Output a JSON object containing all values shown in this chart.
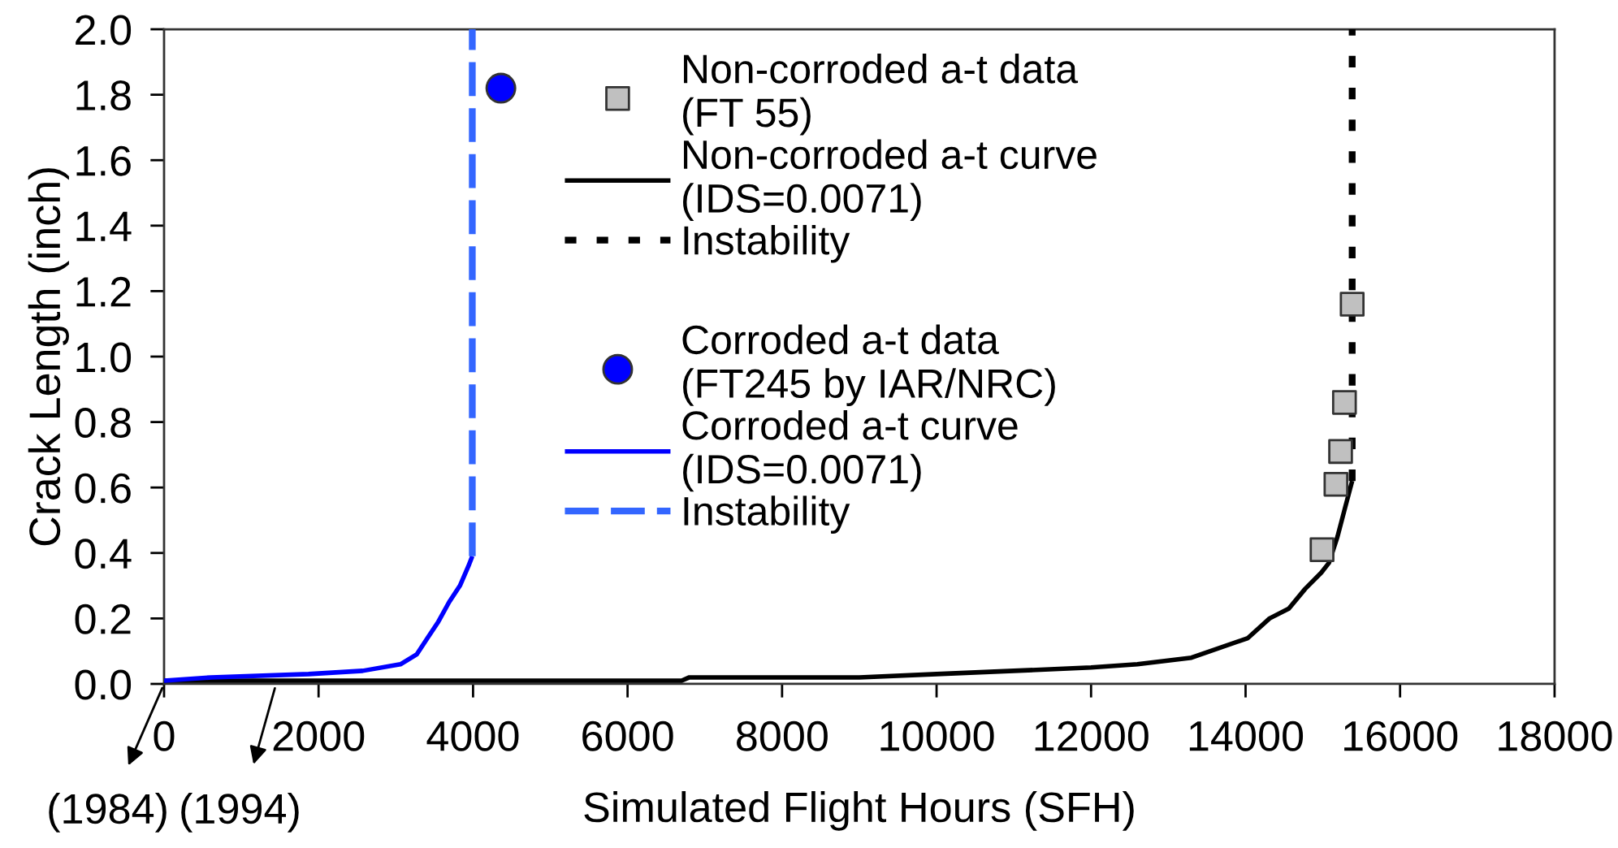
{
  "chart_data": {
    "type": "line",
    "xlabel": "Simulated Flight Hours (SFH)",
    "ylabel": "Crack Length (inch)",
    "xlim": [
      0,
      18000
    ],
    "xticks": [
      0,
      2000,
      4000,
      6000,
      8000,
      10000,
      12000,
      14000,
      16000,
      18000
    ],
    "ylim": [
      0,
      2
    ],
    "yticks": [
      {
        "value": 0,
        "label": "0.0"
      },
      0.2,
      0.4,
      0.6,
      0.8,
      {
        "value": 1,
        "label": "1.0"
      },
      1.2,
      1.4,
      1.6,
      1.8,
      {
        "value": 2,
        "label": "2.0"
      }
    ],
    "grid": false,
    "legend": "top",
    "annotations": [
      {
        "text": "(1984)",
        "x": 0,
        "y": 0
      },
      {
        "text": "(1994)",
        "x": 1450,
        "y": 0
      }
    ],
    "series": [
      {
        "name": "Non-corroded a-t data\n(FT 55)",
        "type": "scatter",
        "marker": "square",
        "color": "#c0c0c0",
        "x": [
          14990,
          15170,
          15230,
          15280,
          15380
        ],
        "values": [
          0.41,
          0.61,
          0.71,
          0.86,
          1.16
        ]
      },
      {
        "name": "Non-corroded a-t curve\n(IDS=0.0071)",
        "marker": "none",
        "line_style": "solid",
        "color": "#000000",
        "x": [
          0,
          2000,
          4000,
          6700,
          6800,
          8000,
          9000,
          10000,
          11000,
          12000,
          12600,
          13300,
          14030,
          14310,
          14560,
          14770,
          14980,
          15080,
          15190,
          15290,
          15380
        ],
        "values": [
          0.01,
          0.01,
          0.01,
          0.01,
          0.02,
          0.02,
          0.02,
          0.03,
          0.04,
          0.05,
          0.06,
          0.08,
          0.14,
          0.2,
          0.23,
          0.29,
          0.34,
          0.37,
          0.45,
          0.54,
          0.62
        ]
      },
      {
        "name": "Instability",
        "marker": "none",
        "line_style": "dotted",
        "color": "#000000",
        "x": [
          15380,
          15380
        ],
        "values": [
          0.62,
          2.0
        ]
      },
      {
        "name": "Corroded a-t data\n(FT245 by IAR/NRC)",
        "type": "scatter",
        "marker": "circle",
        "color": "#0000ff",
        "x": [
          4360
        ],
        "values": [
          1.82
        ]
      },
      {
        "name": "Corroded a-t curve\n(IDS=0.0071)",
        "marker": "none",
        "line_style": "solid",
        "color": "#0000ff",
        "x": [
          0,
          610,
          1870,
          2570,
          3060,
          3270,
          3410,
          3550,
          3690,
          3830,
          3940,
          3990
        ],
        "values": [
          0.01,
          0.02,
          0.03,
          0.04,
          0.06,
          0.09,
          0.14,
          0.19,
          0.25,
          0.3,
          0.36,
          0.39
        ]
      },
      {
        "name": "Instability",
        "marker": "none",
        "line_style": "dashed",
        "color": "#3366ff",
        "x": [
          3990,
          3990
        ],
        "values": [
          0.39,
          2.0
        ]
      }
    ]
  }
}
